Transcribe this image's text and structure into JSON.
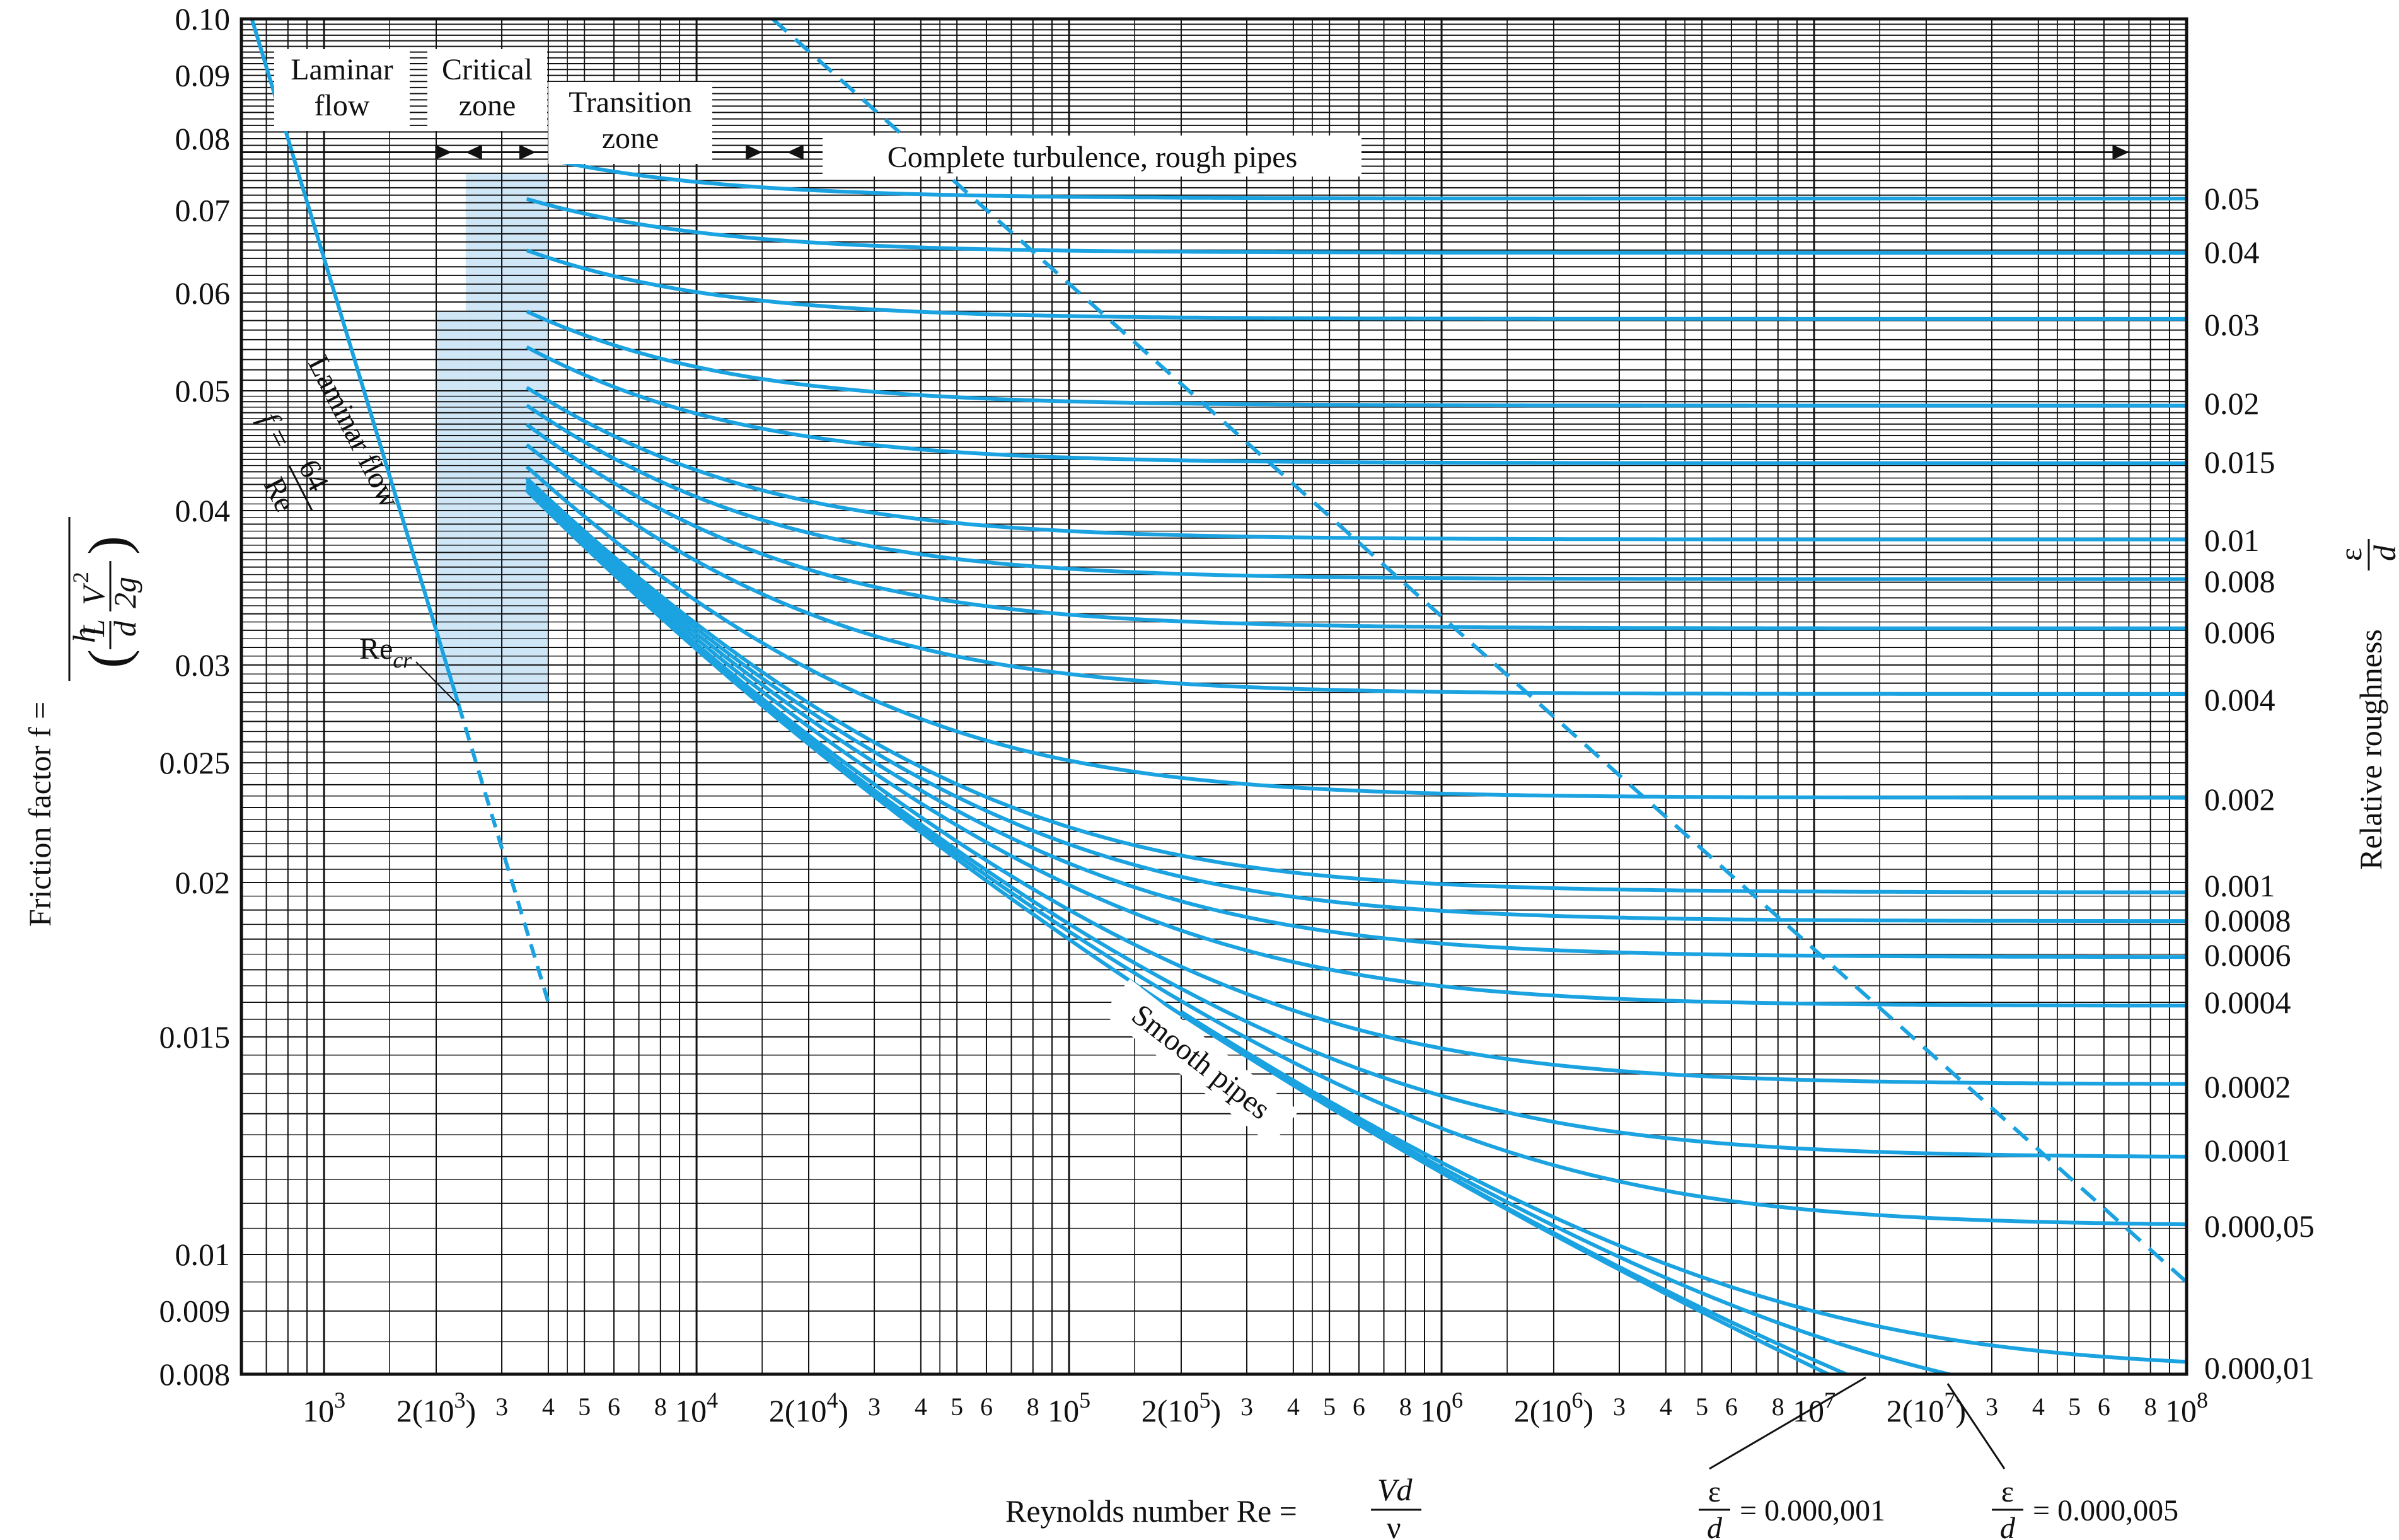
{
  "chart_data": {
    "type": "line",
    "scale": {
      "x": "log",
      "y": "log"
    },
    "grid": true,
    "xlim": [
      600,
      100000000
    ],
    "ylim": [
      0.008,
      0.1
    ],
    "y_ticks": [
      "0.10",
      "0.09",
      "0.08",
      "0.07",
      "0.06",
      "0.05",
      "0.04",
      "0.03",
      "0.025",
      "0.02",
      "0.015",
      "0.01",
      "0.009",
      "0.008"
    ],
    "y_tick_values": [
      0.1,
      0.09,
      0.08,
      0.07,
      0.06,
      0.05,
      0.04,
      0.03,
      0.025,
      0.02,
      0.015,
      0.01,
      0.009,
      0.008
    ],
    "x_ticks": [
      {
        "x": 1000,
        "base": "10",
        "sup": "3",
        "pre": "",
        "post": ""
      },
      {
        "x": 2000,
        "base": "2(10",
        "sup": "3",
        "pre": "",
        "post": ")"
      },
      {
        "x": 3000,
        "base": "3",
        "sup": "",
        "pre": "",
        "post": ""
      },
      {
        "x": 4000,
        "base": "4",
        "sup": "",
        "pre": "",
        "post": ""
      },
      {
        "x": 5000,
        "base": "5",
        "sup": "",
        "pre": "",
        "post": ""
      },
      {
        "x": 6000,
        "base": "6",
        "sup": "",
        "pre": "",
        "post": ""
      },
      {
        "x": 8000,
        "base": "8",
        "sup": "",
        "pre": "",
        "post": ""
      },
      {
        "x": 10000,
        "base": "10",
        "sup": "4",
        "pre": "",
        "post": ""
      },
      {
        "x": 20000,
        "base": "2(10",
        "sup": "4",
        "pre": "",
        "post": ")"
      },
      {
        "x": 30000,
        "base": "3",
        "sup": "",
        "pre": "",
        "post": ""
      },
      {
        "x": 40000,
        "base": "4",
        "sup": "",
        "pre": "",
        "post": ""
      },
      {
        "x": 50000,
        "base": "5",
        "sup": "",
        "pre": "",
        "post": ""
      },
      {
        "x": 60000,
        "base": "6",
        "sup": "",
        "pre": "",
        "post": ""
      },
      {
        "x": 80000,
        "base": "8",
        "sup": "",
        "pre": "",
        "post": ""
      },
      {
        "x": 100000,
        "base": "10",
        "sup": "5",
        "pre": "",
        "post": ""
      },
      {
        "x": 200000,
        "base": "2(10",
        "sup": "5",
        "pre": "",
        "post": ")"
      },
      {
        "x": 300000,
        "base": "3",
        "sup": "",
        "pre": "",
        "post": ""
      },
      {
        "x": 400000,
        "base": "4",
        "sup": "",
        "pre": "",
        "post": ""
      },
      {
        "x": 500000,
        "base": "5",
        "sup": "",
        "pre": "",
        "post": ""
      },
      {
        "x": 600000,
        "base": "6",
        "sup": "",
        "pre": "",
        "post": ""
      },
      {
        "x": 800000,
        "base": "8",
        "sup": "",
        "pre": "",
        "post": ""
      },
      {
        "x": 1000000,
        "base": "10",
        "sup": "6",
        "pre": "",
        "post": ""
      },
      {
        "x": 2000000,
        "base": "2(10",
        "sup": "6",
        "pre": "",
        "post": ")"
      },
      {
        "x": 3000000,
        "base": "3",
        "sup": "",
        "pre": "",
        "post": ""
      },
      {
        "x": 4000000,
        "base": "4",
        "sup": "",
        "pre": "",
        "post": ""
      },
      {
        "x": 5000000,
        "base": "5",
        "sup": "",
        "pre": "",
        "post": ""
      },
      {
        "x": 6000000,
        "base": "6",
        "sup": "",
        "pre": "",
        "post": ""
      },
      {
        "x": 8000000,
        "base": "8",
        "sup": "",
        "pre": "",
        "post": ""
      },
      {
        "x": 10000000,
        "base": "10",
        "sup": "7",
        "pre": "",
        "post": ""
      },
      {
        "x": 20000000,
        "base": "2(10",
        "sup": "7",
        "pre": "",
        "post": ")"
      },
      {
        "x": 30000000,
        "base": "3",
        "sup": "",
        "pre": "",
        "post": ""
      },
      {
        "x": 40000000,
        "base": "4",
        "sup": "",
        "pre": "",
        "post": ""
      },
      {
        "x": 50000000,
        "base": "5",
        "sup": "",
        "pre": "",
        "post": ""
      },
      {
        "x": 60000000,
        "base": "6",
        "sup": "",
        "pre": "",
        "post": ""
      },
      {
        "x": 80000000,
        "base": "8",
        "sup": "",
        "pre": "",
        "post": ""
      },
      {
        "x": 100000000,
        "base": "10",
        "sup": "8",
        "pre": "",
        "post": ""
      }
    ],
    "xlabel": {
      "text": "Reynolds number Re =",
      "num": "Vd",
      "den": "ν"
    },
    "ylabel": {
      "text": "Friction factor f =",
      "num": "h",
      "den_L": "L",
      "den_d": "d",
      "den_V": "V",
      "den_2": "2",
      "den_2g": "2g"
    },
    "y2label": {
      "text": "Relative roughness",
      "num": "ε",
      "den": "d"
    },
    "zones": [
      {
        "line1": "Laminar",
        "line2": "flow"
      },
      {
        "line1": "Critical",
        "line2": "zone"
      },
      {
        "line1": "Transition",
        "line2": "zone"
      },
      {
        "line1": "Complete turbulence, rough pipes",
        "line2": ""
      }
    ],
    "laminar_label": "Laminar flow",
    "laminar_eq": {
      "lhs": "f =",
      "num": "64",
      "den": "Re"
    },
    "re_cr": {
      "text": "Re",
      "sub": "cr"
    },
    "smooth_label": "Smooth pipes",
    "bottom_eps": [
      {
        "eps": "ε",
        "d": "d",
        "value": "= 0.000,001"
      },
      {
        "eps": "ε",
        "d": "d",
        "value": "= 0.000,005"
      }
    ],
    "laminar": {
      "x": [
        600,
        2300
      ],
      "f_eq": "64/Re",
      "dashed_to": 4000
    },
    "critical_zone": {
      "x": [
        2000,
        4000
      ]
    },
    "transition_boundary": {
      "x": [
        16000,
        100000000
      ],
      "y": [
        0.1,
        0.0095
      ]
    },
    "series": [
      {
        "label": "0.05",
        "e_d": 0.05,
        "x_start": 4000,
        "f_fully_rough": 0.0716
      },
      {
        "label": "0.04",
        "e_d": 0.04,
        "x_start": 3500,
        "f_fully_rough": 0.0648
      },
      {
        "label": "0.03",
        "e_d": 0.03,
        "x_start": 3500,
        "f_fully_rough": 0.0571
      },
      {
        "label": "0.02",
        "e_d": 0.02,
        "x_start": 3500,
        "f_fully_rough": 0.049
      },
      {
        "label": "0.015",
        "e_d": 0.015,
        "x_start": 3500,
        "f_fully_rough": 0.0438
      },
      {
        "label": "0.01",
        "e_d": 0.01,
        "x_start": 3500,
        "f_fully_rough": 0.0379
      },
      {
        "label": "0.008",
        "e_d": 0.008,
        "x_start": 3500,
        "f_fully_rough": 0.0356
      },
      {
        "label": "0.006",
        "e_d": 0.006,
        "x_start": 3500,
        "f_fully_rough": 0.0321
      },
      {
        "label": "0.004",
        "e_d": 0.004,
        "x_start": 3500,
        "f_fully_rough": 0.0284
      },
      {
        "label": "0.002",
        "e_d": 0.002,
        "x_start": 3500,
        "f_fully_rough": 0.0234
      },
      {
        "label": "0.001",
        "e_d": 0.001,
        "x_start": 3500,
        "f_fully_rough": 0.0196
      },
      {
        "label": "0.0008",
        "e_d": 0.0008,
        "x_start": 3500,
        "f_fully_rough": 0.0187
      },
      {
        "label": "0.0006",
        "e_d": 0.0006,
        "x_start": 3500,
        "f_fully_rough": 0.0172
      },
      {
        "label": "0.0004",
        "e_d": 0.0004,
        "x_start": 3500,
        "f_fully_rough": 0.016
      },
      {
        "label": "0.0002",
        "e_d": 0.0002,
        "x_start": 3500,
        "f_fully_rough": 0.0137
      },
      {
        "label": "0.0001",
        "e_d": 0.0001,
        "x_start": 3500,
        "f_fully_rough": 0.012
      },
      {
        "label": "0.000,05",
        "e_d": 5e-05,
        "x_start": 10000,
        "f_fully_rough": 0.0106
      },
      {
        "label": "0.000,01",
        "e_d": 1e-05,
        "x_start": 200000,
        "f_fully_rough": 0.0081
      },
      {
        "label": "",
        "e_d": 5e-06,
        "x_start": 200000,
        "f_fully_rough": 0.0073
      },
      {
        "label": "",
        "e_d": 1e-06,
        "x_start": 200000,
        "f_fully_rough": 0.006
      },
      {
        "label": "",
        "e_d": 0,
        "x_start": 3500,
        "f_fully_rough": null
      }
    ],
    "colors": {
      "curve": "#1aa3e0",
      "grid": "#111111",
      "zone_fill": "#cfe6f7",
      "text": "#111111"
    }
  }
}
